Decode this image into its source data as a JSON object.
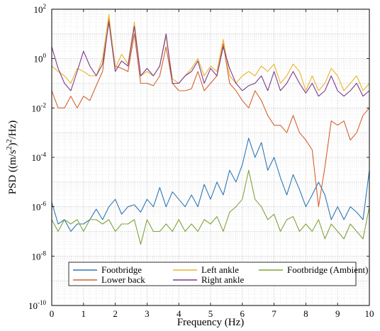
{
  "chart_data": {
    "type": "line",
    "xlabel": "Frequency (Hz)",
    "ylabel": "PSD ((m/s²)²/Hz)",
    "ylabel_parts": {
      "prefix": "PSD ((m/s",
      "sup1": "2",
      "middle": ")",
      "sup2": "2",
      "suffix": "/Hz)"
    },
    "xlim": [
      0,
      10
    ],
    "ylim": [
      1e-10,
      100
    ],
    "yscale": "log",
    "grid": true,
    "legend_position": "bottom",
    "x_ticks": [
      {
        "value": 0,
        "label": "0"
      },
      {
        "value": 1,
        "label": "1"
      },
      {
        "value": 2,
        "label": "2"
      },
      {
        "value": 3,
        "label": "3"
      },
      {
        "value": 4,
        "label": "4"
      },
      {
        "value": 5,
        "label": "5"
      },
      {
        "value": 6,
        "label": "6"
      },
      {
        "value": 7,
        "label": "7"
      },
      {
        "value": 8,
        "label": "8"
      },
      {
        "value": 9,
        "label": "9"
      },
      {
        "value": 10,
        "label": "10"
      }
    ],
    "y_ticks": [
      {
        "value": 100,
        "base": "10",
        "exp": "2"
      },
      {
        "value": 1,
        "base": "10",
        "exp": "0"
      },
      {
        "value": 0.01,
        "base": "10",
        "exp": "-2"
      },
      {
        "value": 0.0001,
        "base": "10",
        "exp": "-4"
      },
      {
        "value": 1e-06,
        "base": "10",
        "exp": "-6"
      },
      {
        "value": 1e-08,
        "base": "10",
        "exp": "-8"
      },
      {
        "value": 1e-10,
        "base": "10",
        "exp": "-10"
      }
    ],
    "series": [
      {
        "name": "Footbridge",
        "color": "#2e77b5",
        "x": [
          0,
          0.2,
          0.4,
          0.6,
          0.8,
          1.0,
          1.2,
          1.4,
          1.6,
          1.8,
          2.0,
          2.2,
          2.4,
          2.6,
          2.8,
          3.0,
          3.2,
          3.4,
          3.6,
          3.8,
          4.0,
          4.2,
          4.4,
          4.6,
          4.8,
          5.0,
          5.2,
          5.4,
          5.6,
          5.8,
          6.0,
          6.2,
          6.4,
          6.6,
          6.8,
          7.0,
          7.2,
          7.4,
          7.6,
          7.8,
          8.0,
          8.2,
          8.4,
          8.6,
          8.8,
          9.0,
          9.2,
          9.4,
          9.6,
          9.8,
          10.0
        ],
        "y": [
          1.5e-06,
          2e-07,
          3e-07,
          1e-07,
          2e-07,
          2e-07,
          3e-07,
          8e-07,
          3e-07,
          1e-06,
          2e-06,
          5e-07,
          1e-06,
          1.2e-06,
          6e-07,
          2e-06,
          1e-06,
          6e-06,
          1e-06,
          4e-06,
          2e-06,
          1e-06,
          3e-06,
          1e-06,
          8e-06,
          2e-06,
          1e-05,
          3e-06,
          3e-05,
          1e-05,
          5e-05,
          0.0006,
          0.0001,
          0.0004,
          3e-05,
          0.0001,
          1.5e-05,
          3e-06,
          2e-05,
          5e-06,
          1e-06,
          3e-06,
          1e-05,
          3e-06,
          3e-07,
          1e-06,
          3e-07,
          1e-06,
          6e-07,
          3e-07,
          3e-05
        ]
      },
      {
        "name": "Lower back",
        "color": "#d4622c",
        "x": [
          0,
          0.2,
          0.4,
          0.6,
          0.8,
          1.0,
          1.2,
          1.4,
          1.6,
          1.8,
          2.0,
          2.2,
          2.4,
          2.6,
          2.8,
          3.0,
          3.2,
          3.4,
          3.6,
          3.8,
          4.0,
          4.2,
          4.4,
          4.6,
          4.8,
          5.0,
          5.2,
          5.4,
          5.6,
          5.8,
          6.0,
          6.2,
          6.4,
          6.6,
          6.8,
          7.0,
          7.2,
          7.4,
          7.6,
          7.8,
          8.0,
          8.2,
          8.4,
          8.6,
          8.8,
          9.0,
          9.2,
          9.4,
          9.6,
          9.8,
          10.0
        ],
        "y": [
          0.05,
          0.01,
          0.01,
          0.03,
          0.01,
          0.03,
          0.02,
          0.08,
          0.3,
          40,
          0.5,
          0.4,
          0.3,
          10,
          0.1,
          0.1,
          0.08,
          0.2,
          3,
          0.1,
          0.05,
          0.05,
          0.06,
          0.3,
          0.05,
          0.1,
          0.2,
          4,
          0.1,
          0.05,
          0.02,
          0.01,
          0.05,
          0.02,
          0.005,
          0.002,
          0.002,
          0.001,
          0.005,
          0.001,
          0.0005,
          0.0002,
          1e-06,
          4e-05,
          0.003,
          0.002,
          0.003,
          0.0005,
          0.001,
          0.005,
          0.01
        ]
      },
      {
        "name": "Left ankle",
        "color": "#e8b52b",
        "x": [
          0,
          0.2,
          0.4,
          0.6,
          0.8,
          1.0,
          1.2,
          1.4,
          1.6,
          1.8,
          2.0,
          2.2,
          2.4,
          2.6,
          2.8,
          3.0,
          3.2,
          3.4,
          3.6,
          3.8,
          4.0,
          4.2,
          4.4,
          4.6,
          4.8,
          5.0,
          5.2,
          5.4,
          5.6,
          5.8,
          6.0,
          6.2,
          6.4,
          6.6,
          6.8,
          7.0,
          7.2,
          7.4,
          7.6,
          7.8,
          8.0,
          8.2,
          8.4,
          8.6,
          8.8,
          9.0,
          9.2,
          9.4,
          9.6,
          9.8,
          10.0
        ],
        "y": [
          0.5,
          0.3,
          0.2,
          0.1,
          0.4,
          0.3,
          0.2,
          0.2,
          1,
          60,
          0.4,
          1.5,
          0.6,
          30,
          0.2,
          0.3,
          0.2,
          0.5,
          8,
          0.15,
          0.1,
          0.2,
          0.4,
          1,
          0.2,
          0.5,
          0.3,
          6,
          0.2,
          0.1,
          0.2,
          0.3,
          0.2,
          0.5,
          0.3,
          0.6,
          0.1,
          0.2,
          0.6,
          0.3,
          0.05,
          0.2,
          0.05,
          0.1,
          0.4,
          0.2,
          0.05,
          0.1,
          0.2,
          0.05,
          0.1
        ]
      },
      {
        "name": "Right ankle",
        "color": "#7b3b8f",
        "x": [
          0,
          0.2,
          0.4,
          0.6,
          0.8,
          1.0,
          1.2,
          1.4,
          1.6,
          1.8,
          2.0,
          2.2,
          2.4,
          2.6,
          2.8,
          3.0,
          3.2,
          3.4,
          3.6,
          3.8,
          4.0,
          4.2,
          4.4,
          4.6,
          4.8,
          5.0,
          5.2,
          5.4,
          5.6,
          5.8,
          6.0,
          6.2,
          6.4,
          6.6,
          6.8,
          7.0,
          7.2,
          7.4,
          7.6,
          7.8,
          8.0,
          8.2,
          8.4,
          8.6,
          8.8,
          9.0,
          9.2,
          9.4,
          9.6,
          9.8,
          10.0
        ],
        "y": [
          3,
          0.4,
          0.1,
          0.05,
          0.3,
          2,
          0.5,
          0.2,
          0.6,
          30,
          0.3,
          0.8,
          0.5,
          20,
          0.2,
          0.4,
          0.2,
          0.5,
          10,
          0.1,
          0.1,
          0.2,
          0.3,
          0.8,
          0.1,
          0.4,
          0.2,
          3,
          0.4,
          0.1,
          0.05,
          0.08,
          0.1,
          0.2,
          0.05,
          0.3,
          0.05,
          0.1,
          0.3,
          0.1,
          0.04,
          0.1,
          0.03,
          0.05,
          0.2,
          0.05,
          0.03,
          0.05,
          0.1,
          0.03,
          0.05
        ]
      },
      {
        "name": "Footbridge (Ambient)",
        "color": "#7fa33a",
        "x": [
          0,
          0.2,
          0.4,
          0.6,
          0.8,
          1.0,
          1.2,
          1.4,
          1.6,
          1.8,
          2.0,
          2.2,
          2.4,
          2.6,
          2.8,
          3.0,
          3.2,
          3.4,
          3.6,
          3.8,
          4.0,
          4.2,
          4.4,
          4.6,
          4.8,
          5.0,
          5.2,
          5.4,
          5.6,
          5.8,
          6.0,
          6.2,
          6.4,
          6.6,
          6.8,
          7.0,
          7.2,
          7.4,
          7.6,
          7.8,
          8.0,
          8.2,
          8.4,
          8.6,
          8.8,
          9.0,
          9.2,
          9.4,
          9.6,
          9.8,
          10.0
        ],
        "y": [
          3e-07,
          1e-07,
          3e-07,
          2e-07,
          3e-07,
          1e-07,
          3e-07,
          3e-07,
          2e-07,
          3e-07,
          1e-07,
          2e-07,
          2e-07,
          3e-07,
          3e-08,
          3e-07,
          1e-07,
          1e-07,
          2e-07,
          1e-07,
          3e-07,
          1e-07,
          2e-07,
          1e-07,
          3e-07,
          2e-07,
          4e-07,
          1e-07,
          6e-07,
          1e-06,
          2e-06,
          3e-05,
          2e-06,
          1e-06,
          3e-07,
          5e-07,
          1e-07,
          3e-07,
          4e-07,
          1e-07,
          2e-07,
          1e-07,
          3e-07,
          5e-08,
          2e-07,
          1e-07,
          5e-08,
          2e-07,
          1e-07,
          5e-08,
          1e-06
        ]
      }
    ],
    "legend": {
      "rows": [
        [
          "Footbridge",
          "Left ankle",
          "Footbridge (Ambient)"
        ],
        [
          "Lower back",
          "Right ankle"
        ]
      ]
    }
  }
}
